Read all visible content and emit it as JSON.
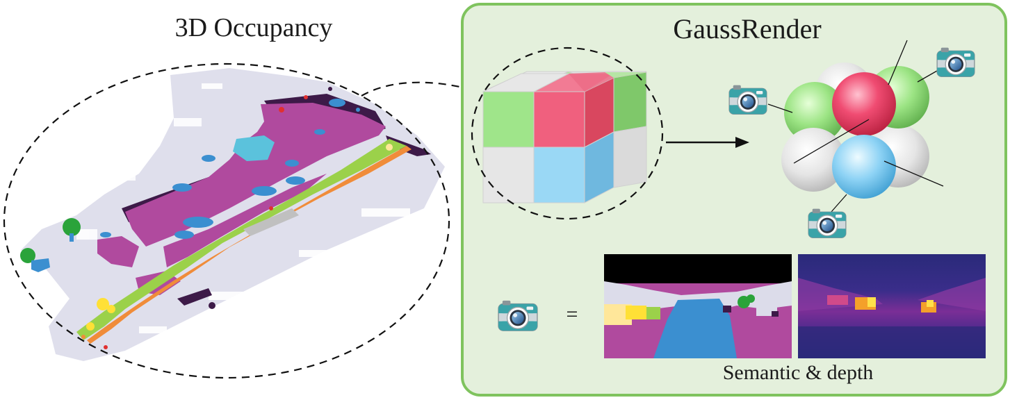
{
  "left_panel": {
    "title": "3D Occupancy"
  },
  "right_panel": {
    "title": "GaussRender",
    "equals_sign": "=",
    "caption": "Semantic & depth"
  },
  "colors": {
    "panel_fill": "#e4f0dc",
    "panel_border": "#7fc35e",
    "drivable_magenta": "#b04a9e",
    "sidewalk_green": "#9bd14a",
    "vegetation_green": "#2aa33a",
    "car_blue": "#3b8fd0",
    "manmade_purple": "#3d1a48",
    "terrain_lavender": "#dcdcea",
    "cube_green": "#9fe58a",
    "cube_pink": "#f0607e",
    "cube_blue": "#9ad8f5",
    "cube_grey": "#e6e6e6",
    "depth_far": "#2a2a7a",
    "depth_near": "#f4c030"
  },
  "icons": [
    "camera-icon"
  ]
}
